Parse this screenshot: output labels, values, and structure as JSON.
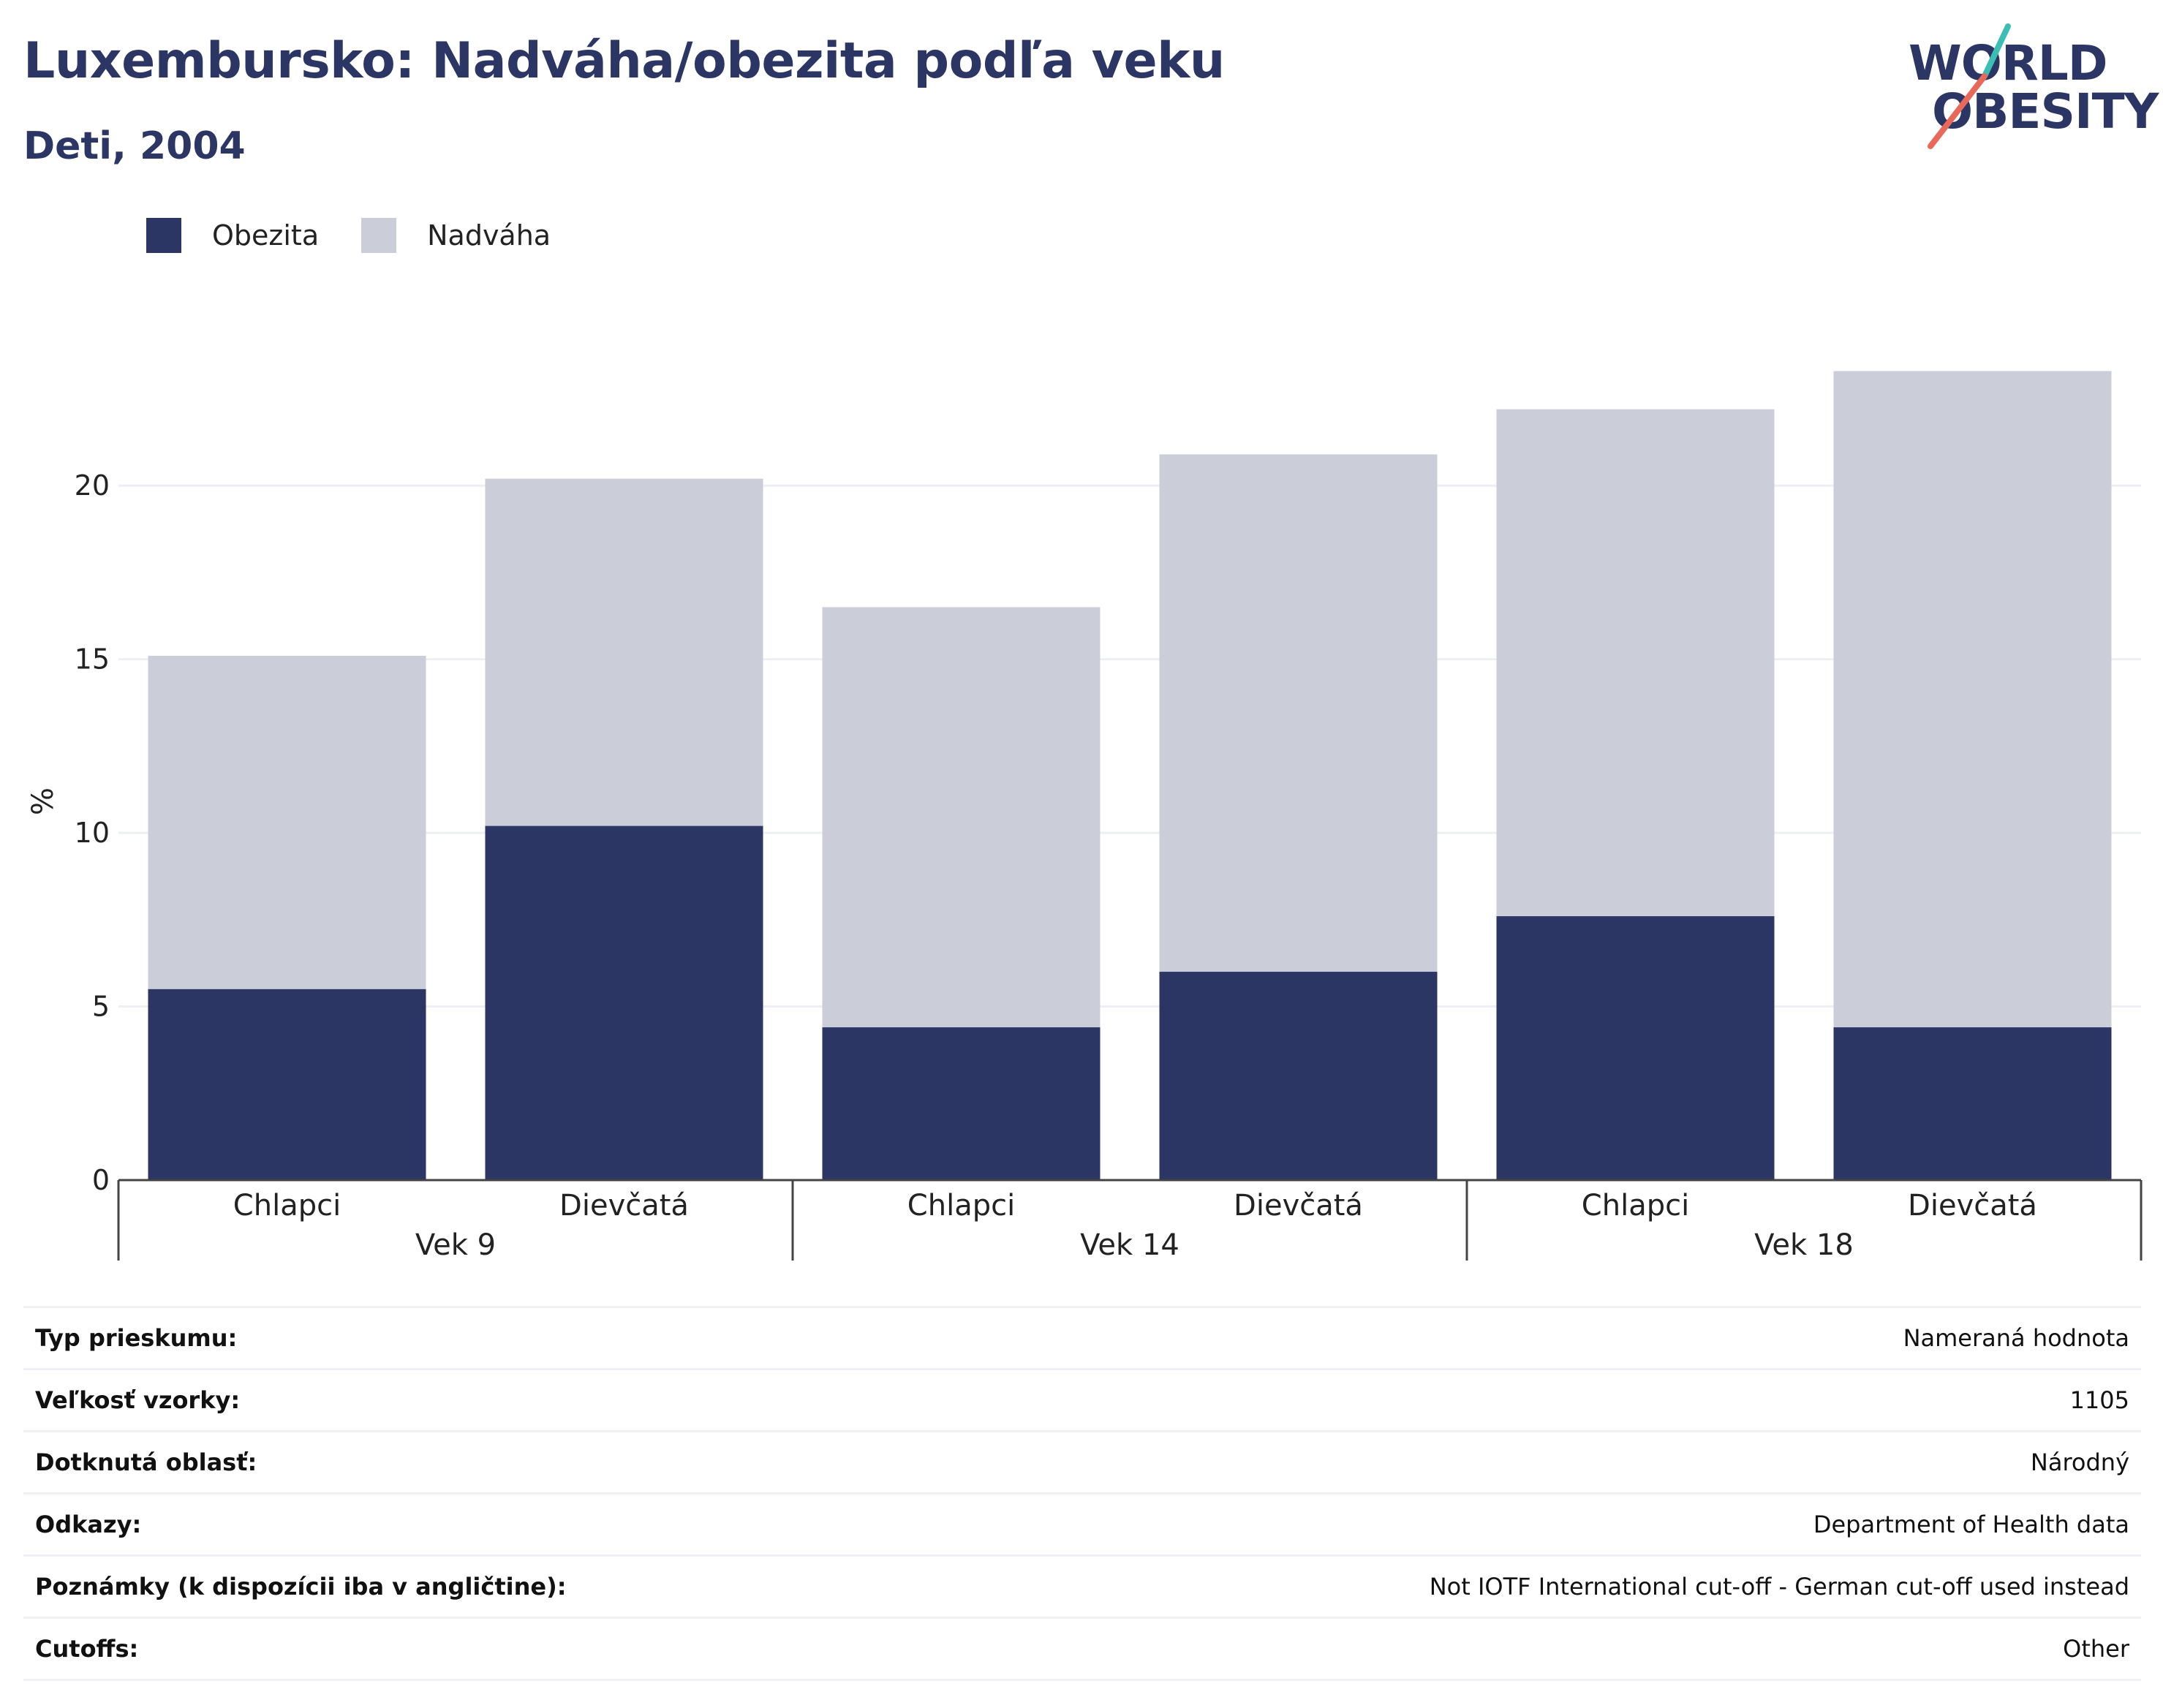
{
  "title": "Luxembursko: Nadváha/obezita podľa veku",
  "subtitle": "Deti, 2004",
  "logo": {
    "line1": "WORLD",
    "line2": "OBESITY",
    "accent_teal": "#3bbfb4",
    "accent_coral": "#e8685a"
  },
  "colors": {
    "obesity": "#2b3664",
    "overweight": "#cbcdd9",
    "grid": "#eeeff4",
    "axis": "#444444"
  },
  "legend": [
    {
      "label": "Obezita",
      "color": "#2b3664"
    },
    {
      "label": "Nadváha",
      "color": "#cbcdd9"
    }
  ],
  "chart_data": {
    "type": "bar",
    "stacked": true,
    "ylabel": "%",
    "ylim": [
      0,
      23.5
    ],
    "yticks": [
      0,
      5,
      10,
      15,
      20
    ],
    "grid": true,
    "legend_position": "top-left",
    "groups": [
      "Vek 9",
      "Vek 14",
      "Vek 18"
    ],
    "categories": [
      "Chlapci",
      "Dievčatá",
      "Chlapci",
      "Dievčatá",
      "Chlapci",
      "Dievčatá"
    ],
    "series": [
      {
        "name": "Obezita",
        "values": [
          5.5,
          10.2,
          4.4,
          6.0,
          7.6,
          4.4
        ]
      },
      {
        "name": "Nadváha",
        "values": [
          9.6,
          10.0,
          12.1,
          14.9,
          14.6,
          18.9
        ]
      }
    ]
  },
  "info": [
    {
      "key": "Typ prieskumu:",
      "value": "Nameraná hodnota"
    },
    {
      "key": "Veľkosť vzorky:",
      "value": "1105"
    },
    {
      "key": "Dotknutá oblasť:",
      "value": "Národný"
    },
    {
      "key": "Odkazy:",
      "value": "Department of Health data"
    },
    {
      "key": "Poznámky (k dispozícii iba v angličtine):",
      "value": "Not IOTF International cut-off - German cut-off used instead"
    },
    {
      "key": "Cutoffs:",
      "value": "Other"
    }
  ]
}
